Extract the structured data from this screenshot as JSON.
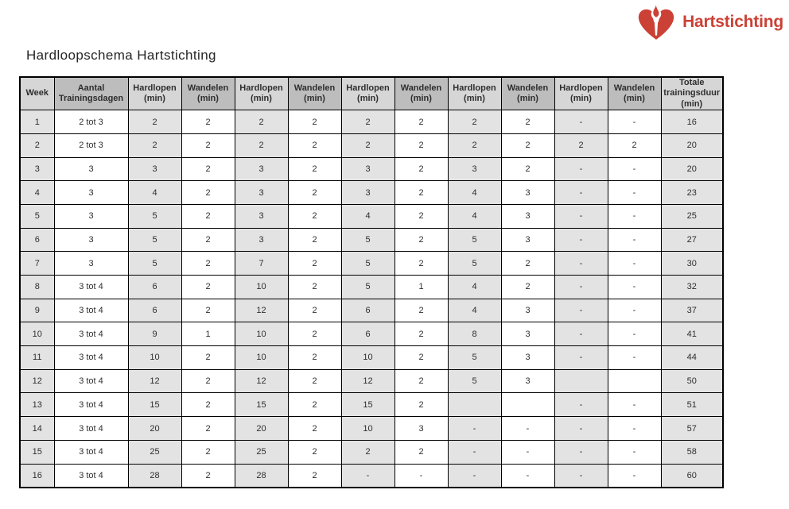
{
  "page": {
    "title": "Hardloopschema Hartstichting"
  },
  "logo": {
    "text": "Hartstichting",
    "icon": "heart-torch-icon",
    "brand_red": "#cb4136"
  },
  "table": {
    "headers": [
      {
        "lines": [
          "Week"
        ]
      },
      {
        "lines": [
          "Aantal",
          "Trainingsdagen"
        ]
      },
      {
        "lines": [
          "Hardlopen",
          "(min)"
        ]
      },
      {
        "lines": [
          "Wandelen",
          "(min)"
        ]
      },
      {
        "lines": [
          "Hardlopen",
          "(min)"
        ]
      },
      {
        "lines": [
          "Wandelen",
          "(min)"
        ]
      },
      {
        "lines": [
          "Hardlopen",
          "(min)"
        ]
      },
      {
        "lines": [
          "Wandelen",
          "(min)"
        ]
      },
      {
        "lines": [
          "Hardlopen",
          "(min)"
        ]
      },
      {
        "lines": [
          "Wandelen",
          "(min)"
        ]
      },
      {
        "lines": [
          "Hardlopen",
          "(min)"
        ]
      },
      {
        "lines": [
          "Wandelen",
          "(min)"
        ]
      },
      {
        "lines": [
          "Totale",
          "trainingsduur",
          "(min)"
        ]
      }
    ],
    "rows": [
      [
        "1",
        "2 tot 3",
        "2",
        "2",
        "2",
        "2",
        "2",
        "2",
        "2",
        "2",
        "-",
        "-",
        "16"
      ],
      [
        "2",
        "2 tot 3",
        "2",
        "2",
        "2",
        "2",
        "2",
        "2",
        "2",
        "2",
        "2",
        "2",
        "20"
      ],
      [
        "3",
        "3",
        "3",
        "2",
        "3",
        "2",
        "3",
        "2",
        "3",
        "2",
        "-",
        "-",
        "20"
      ],
      [
        "4",
        "3",
        "4",
        "2",
        "3",
        "2",
        "3",
        "2",
        "4",
        "3",
        "-",
        "-",
        "23"
      ],
      [
        "5",
        "3",
        "5",
        "2",
        "3",
        "2",
        "4",
        "2",
        "4",
        "3",
        "-",
        "-",
        "25"
      ],
      [
        "6",
        "3",
        "5",
        "2",
        "3",
        "2",
        "5",
        "2",
        "5",
        "3",
        "-",
        "-",
        "27"
      ],
      [
        "7",
        "3",
        "5",
        "2",
        "7",
        "2",
        "5",
        "2",
        "5",
        "2",
        "-",
        "-",
        "30"
      ],
      [
        "8",
        "3 tot 4",
        "6",
        "2",
        "10",
        "2",
        "5",
        "1",
        "4",
        "2",
        "-",
        "-",
        "32"
      ],
      [
        "9",
        "3 tot 4",
        "6",
        "2",
        "12",
        "2",
        "6",
        "2",
        "4",
        "3",
        "-",
        "-",
        "37"
      ],
      [
        "10",
        "3 tot 4",
        "9",
        "1",
        "10",
        "2",
        "6",
        "2",
        "8",
        "3",
        "-",
        "-",
        "41"
      ],
      [
        "11",
        "3 tot 4",
        "10",
        "2",
        "10",
        "2",
        "10",
        "2",
        "5",
        "3",
        "-",
        "-",
        "44"
      ],
      [
        "12",
        "3 tot 4",
        "12",
        "2",
        "12",
        "2",
        "12",
        "2",
        "5",
        "3",
        "",
        "",
        "50"
      ],
      [
        "13",
        "3 tot 4",
        "15",
        "2",
        "15",
        "2",
        "15",
        "2",
        "",
        "",
        "-",
        "-",
        "51"
      ],
      [
        "14",
        "3 tot 4",
        "20",
        "2",
        "20",
        "2",
        "10",
        "3",
        "-",
        "-",
        "-",
        "-",
        "57"
      ],
      [
        "15",
        "3 tot 4",
        "25",
        "2",
        "25",
        "2",
        "2",
        "2",
        "-",
        "-",
        "-",
        "-",
        "58"
      ],
      [
        "16",
        "3 tot 4",
        "28",
        "2",
        "28",
        "2",
        "-",
        "-",
        "-",
        "-",
        "-",
        "-",
        "60"
      ]
    ]
  }
}
